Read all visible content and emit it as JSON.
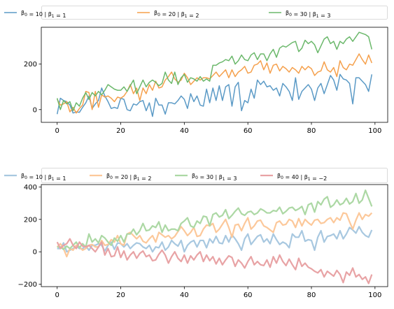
{
  "chart_data": [
    {
      "type": "line",
      "xlim": [
        -5,
        104
      ],
      "ylim": [
        -56,
        362
      ],
      "xticks": [
        0,
        20,
        40,
        60,
        80,
        100
      ],
      "yticks": [
        0,
        200
      ],
      "legend": "top, above plot, 3 columns",
      "series": [
        {
          "name": "β0 = 10 | β1 = 1",
          "name_parts": [
            "β",
            "0",
            " = 10 | ",
            "β",
            "1",
            " = 1"
          ],
          "color": "#5b9ac6",
          "alpha": 1,
          "values": [
            -20,
            50,
            40,
            35,
            20,
            -15,
            -10,
            -12,
            10,
            30,
            60,
            5,
            25,
            40,
            95,
            60,
            35,
            5,
            10,
            5,
            50,
            45,
            0,
            -5,
            25,
            20,
            35,
            40,
            -5,
            30,
            -30,
            50,
            20,
            20,
            -20,
            30,
            30,
            25,
            40,
            60,
            45,
            5,
            70,
            35,
            60,
            20,
            15,
            90,
            30,
            95,
            40,
            105,
            40,
            100,
            110,
            15,
            100,
            120,
            -5,
            40,
            30,
            90,
            50,
            130,
            110,
            125,
            100,
            105,
            85,
            95,
            60,
            115,
            100,
            80,
            40,
            140,
            45,
            80,
            95,
            110,
            90,
            40,
            95,
            115,
            70,
            110,
            150,
            130,
            85,
            155,
            135,
            130,
            115,
            25,
            140,
            140,
            125,
            110,
            80,
            155
          ]
        },
        {
          "name": "β0 = 20 | β1 = 2",
          "name_parts": [
            "β",
            "0",
            " = 20 | ",
            "β",
            "1",
            " = 2"
          ],
          "color": "#f5a04c",
          "alpha": 1,
          "values": [
            45,
            20,
            25,
            35,
            -10,
            10,
            -15,
            5,
            20,
            80,
            75,
            0,
            80,
            10,
            65,
            55,
            60,
            50,
            35,
            55,
            50,
            60,
            80,
            110,
            70,
            95,
            40,
            95,
            70,
            110,
            85,
            125,
            95,
            100,
            130,
            145,
            165,
            135,
            120,
            130,
            160,
            140,
            110,
            125,
            140,
            130,
            140,
            140,
            135,
            150,
            165,
            145,
            160,
            175,
            140,
            175,
            145,
            165,
            175,
            190,
            160,
            165,
            195,
            200,
            215,
            175,
            205,
            160,
            195,
            200,
            170,
            190,
            180,
            165,
            185,
            175,
            160,
            190,
            175,
            190,
            180,
            150,
            165,
            170,
            210,
            175,
            165,
            185,
            145,
            215,
            185,
            175,
            200,
            195,
            220,
            245,
            220,
            200,
            240,
            205
          ]
        },
        {
          "name": "β0 = 30 | β1 = 3",
          "name_parts": [
            "β",
            "0",
            " = 30 | ",
            "β",
            "1",
            " = 3"
          ],
          "color": "#6bb86b",
          "alpha": 1,
          "values": [
            50,
            0,
            40,
            25,
            35,
            -5,
            30,
            15,
            50,
            75,
            45,
            75,
            60,
            80,
            65,
            85,
            110,
            100,
            90,
            85,
            85,
            100,
            80,
            105,
            130,
            70,
            100,
            130,
            100,
            120,
            130,
            120,
            105,
            115,
            165,
            130,
            115,
            165,
            110,
            140,
            155,
            120,
            140,
            135,
            125,
            145,
            125,
            135,
            125,
            195,
            195,
            205,
            210,
            220,
            215,
            235,
            200,
            215,
            240,
            220,
            215,
            240,
            250,
            220,
            245,
            245,
            215,
            245,
            265,
            230,
            270,
            280,
            275,
            285,
            295,
            300,
            255,
            270,
            305,
            290,
            300,
            285,
            250,
            280,
            310,
            320,
            290,
            300,
            265,
            300,
            290,
            310,
            320,
            300,
            320,
            340,
            335,
            330,
            320,
            265
          ]
        }
      ]
    },
    {
      "type": "line",
      "xlim": [
        -5,
        104
      ],
      "ylim": [
        -215,
        415
      ],
      "xticks": [
        0,
        20,
        40,
        60,
        80,
        100
      ],
      "yticks": [
        -200,
        0,
        200,
        400
      ],
      "legend": "top, above plot, 4 columns",
      "series": [
        {
          "name": "β0 = 10 | β1 = 1",
          "name_parts": [
            "β",
            "0",
            " = 10 | ",
            "β",
            "1",
            " = 1"
          ],
          "color": "#a8c8e0",
          "alpha": 1,
          "values": [
            20,
            20,
            55,
            0,
            10,
            20,
            35,
            20,
            20,
            35,
            10,
            40,
            40,
            50,
            40,
            5,
            40,
            60,
            15,
            55,
            50,
            30,
            50,
            20,
            40,
            55,
            50,
            30,
            20,
            40,
            0,
            30,
            25,
            60,
            10,
            30,
            70,
            50,
            35,
            70,
            0,
            40,
            60,
            70,
            30,
            70,
            70,
            25,
            80,
            55,
            95,
            55,
            50,
            100,
            60,
            105,
            80,
            50,
            10,
            80,
            110,
            45,
            70,
            95,
            105,
            60,
            80,
            50,
            110,
            75,
            45,
            60,
            50,
            25,
            110,
            90,
            90,
            130,
            65,
            75,
            70,
            10,
            90,
            130,
            60,
            95,
            100,
            110,
            80,
            130,
            80,
            110,
            150,
            135,
            115,
            155,
            120,
            100,
            90,
            135
          ]
        },
        {
          "name": "β0 = 20 | β1 = 2",
          "name_parts": [
            "β",
            "0",
            " = 20 | ",
            "β",
            "1",
            " = 2"
          ],
          "color": "#fcc89a",
          "alpha": 1,
          "values": [
            30,
            50,
            20,
            -30,
            20,
            10,
            40,
            30,
            10,
            20,
            40,
            45,
            30,
            30,
            70,
            40,
            45,
            75,
            60,
            100,
            50,
            40,
            110,
            120,
            100,
            80,
            100,
            65,
            55,
            80,
            100,
            60,
            120,
            105,
            90,
            100,
            80,
            95,
            125,
            155,
            130,
            100,
            120,
            150,
            95,
            100,
            140,
            165,
            160,
            175,
            120,
            140,
            170,
            200,
            150,
            90,
            165,
            170,
            130,
            175,
            210,
            140,
            160,
            190,
            195,
            160,
            150,
            135,
            120,
            180,
            190,
            165,
            170,
            200,
            190,
            150,
            205,
            160,
            200,
            180,
            165,
            195,
            200,
            175,
            180,
            200,
            210,
            180,
            210,
            195,
            240,
            235,
            185,
            140,
            195,
            240,
            200,
            230,
            220,
            240
          ]
        },
        {
          "name": "β0 = 30 | β1 = 3",
          "name_parts": [
            "β",
            "0",
            " = 30 | ",
            "β",
            "1",
            " = 3"
          ],
          "color": "#acd8a4",
          "alpha": 1,
          "values": [
            30,
            30,
            15,
            35,
            20,
            40,
            60,
            25,
            50,
            30,
            110,
            60,
            80,
            55,
            100,
            85,
            60,
            40,
            85,
            65,
            100,
            60,
            110,
            110,
            140,
            105,
            130,
            175,
            130,
            135,
            160,
            150,
            185,
            120,
            165,
            130,
            140,
            140,
            130,
            175,
            190,
            210,
            160,
            150,
            190,
            175,
            220,
            215,
            160,
            230,
            240,
            215,
            225,
            260,
            205,
            225,
            250,
            270,
            235,
            225,
            245,
            250,
            230,
            240,
            265,
            255,
            240,
            240,
            255,
            250,
            275,
            235,
            250,
            270,
            275,
            255,
            265,
            280,
            230,
            290,
            300,
            245,
            310,
            290,
            325,
            340,
            275,
            290,
            320,
            290,
            300,
            330,
            295,
            310,
            360,
            300,
            320,
            380,
            330,
            280
          ]
        },
        {
          "name": "β0 = 40 | β1 = −2",
          "name_parts": [
            "β",
            "0",
            " = 40 | ",
            "β",
            "1",
            " = −2"
          ],
          "color": "#e8a3a5",
          "alpha": 1,
          "values": [
            60,
            20,
            40,
            50,
            80,
            40,
            20,
            60,
            35,
            30,
            40,
            20,
            0,
            30,
            60,
            -20,
            20,
            -30,
            -25,
            30,
            -35,
            5,
            -50,
            -20,
            0,
            -40,
            -10,
            5,
            -30,
            -20,
            -55,
            -50,
            -15,
            10,
            -20,
            -70,
            -30,
            0,
            -40,
            -60,
            -20,
            -70,
            -25,
            -50,
            -20,
            0,
            -60,
            -20,
            -55,
            -30,
            -75,
            -40,
            -80,
            -50,
            -25,
            -35,
            -90,
            -50,
            -70,
            -100,
            -60,
            -30,
            -80,
            -60,
            -80,
            -85,
            -50,
            -95,
            -30,
            -70,
            -20,
            -60,
            -85,
            -45,
            -80,
            -110,
            -40,
            -90,
            -70,
            -95,
            -105,
            -120,
            -130,
            -110,
            -155,
            -120,
            -135,
            -150,
            -115,
            -140,
            -190,
            -125,
            -145,
            -100,
            -155,
            -140,
            -170,
            -155,
            -195,
            -140
          ]
        }
      ]
    }
  ]
}
